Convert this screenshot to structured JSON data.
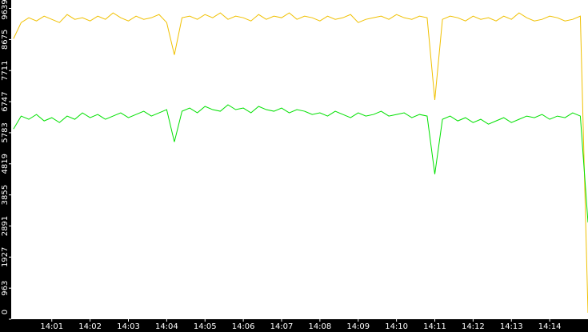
{
  "chart_data": {
    "type": "line",
    "x": [
      840.0,
      840.2,
      840.4,
      840.6,
      840.8,
      841.0,
      841.2,
      841.4,
      841.6,
      841.8,
      842.0,
      842.2,
      842.4,
      842.6,
      842.8,
      843.0,
      843.2,
      843.4,
      843.6,
      843.8,
      844.0,
      844.2,
      844.4,
      844.6,
      844.8,
      845.0,
      845.2,
      845.4,
      845.6,
      845.8,
      846.0,
      846.2,
      846.4,
      846.6,
      846.8,
      847.0,
      847.2,
      847.4,
      847.6,
      847.8,
      848.0,
      848.2,
      848.4,
      848.6,
      848.8,
      849.0,
      849.2,
      849.4,
      849.6,
      849.8,
      850.0,
      850.2,
      850.4,
      850.6,
      850.8,
      851.0,
      851.2,
      851.4,
      851.6,
      851.8,
      852.0,
      852.2,
      852.4,
      852.6,
      852.8,
      853.0,
      853.2,
      853.4,
      853.6,
      853.8,
      854.0,
      854.2,
      854.4,
      854.6,
      854.8,
      855.0
    ],
    "series": [
      {
        "color": "#f0c000",
        "values": [
          8700,
          9200,
          9350,
          9250,
          9400,
          9300,
          9200,
          9450,
          9300,
          9350,
          9250,
          9400,
          9300,
          9500,
          9350,
          9250,
          9400,
          9300,
          9350,
          9450,
          9200,
          8200,
          9350,
          9400,
          9300,
          9450,
          9350,
          9500,
          9300,
          9400,
          9350,
          9250,
          9450,
          9300,
          9400,
          9350,
          9500,
          9300,
          9400,
          9350,
          9250,
          9400,
          9300,
          9350,
          9450,
          9200,
          9300,
          9350,
          9400,
          9300,
          9450,
          9350,
          9300,
          9400,
          9350,
          6800,
          9300,
          9400,
          9350,
          9250,
          9400,
          9300,
          9350,
          9250,
          9400,
          9300,
          9500,
          9350,
          9250,
          9300,
          9400,
          9350,
          9250,
          9300,
          9400,
          200
        ]
      },
      {
        "color": "#00e000",
        "values": [
          5900,
          6300,
          6200,
          6350,
          6150,
          6250,
          6100,
          6300,
          6200,
          6400,
          6250,
          6350,
          6200,
          6300,
          6400,
          6250,
          6350,
          6450,
          6300,
          6400,
          6500,
          5500,
          6450,
          6550,
          6400,
          6600,
          6500,
          6450,
          6650,
          6500,
          6550,
          6400,
          6600,
          6500,
          6450,
          6550,
          6400,
          6500,
          6450,
          6350,
          6400,
          6300,
          6450,
          6350,
          6250,
          6400,
          6300,
          6350,
          6450,
          6300,
          6350,
          6400,
          6250,
          6350,
          6300,
          4500,
          6200,
          6300,
          6150,
          6250,
          6100,
          6200,
          6050,
          6150,
          6250,
          6100,
          6200,
          6300,
          6250,
          6350,
          6200,
          6300,
          6250,
          6400,
          6300,
          3000
        ]
      }
    ],
    "xlim": [
      839.94,
      855
    ],
    "xticks": [
      {
        "value": 841,
        "label": "14:01"
      },
      {
        "value": 842,
        "label": "14:02"
      },
      {
        "value": 843,
        "label": "14:03"
      },
      {
        "value": 844,
        "label": "14:04"
      },
      {
        "value": 845,
        "label": "14:05"
      },
      {
        "value": 846,
        "label": "14:06"
      },
      {
        "value": 847,
        "label": "14:07"
      },
      {
        "value": 848,
        "label": "14:08"
      },
      {
        "value": 849,
        "label": "14:09"
      },
      {
        "value": 850,
        "label": "14:10"
      },
      {
        "value": 851,
        "label": "14:11"
      },
      {
        "value": 852,
        "label": "14:12"
      },
      {
        "value": 853,
        "label": "14:13"
      },
      {
        "value": 854,
        "label": "14:14"
      }
    ],
    "ylim": [
      0,
      9900
    ],
    "yticks": [
      0,
      963,
      1927,
      2891,
      3855,
      4819,
      5783,
      6747,
      7711,
      8675,
      9639
    ]
  }
}
